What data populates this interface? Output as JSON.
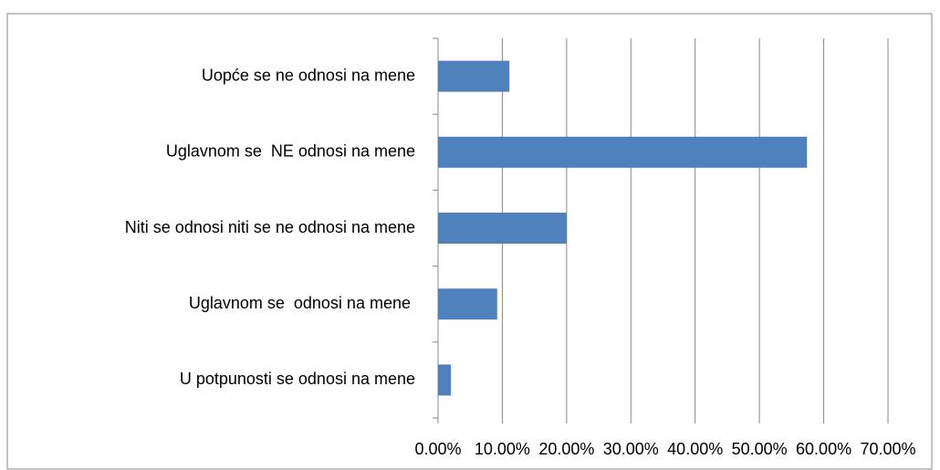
{
  "chart_data": {
    "type": "bar",
    "orientation": "horizontal",
    "categories": [
      "Uopće se ne odnosi na mene",
      "Uglavnom se  NE odnosi na mene",
      "Niti se odnosi niti se ne odnosi na mene",
      "Uglavnom se  odnosi na mene ",
      "U potpunosti se odnosi na mene"
    ],
    "values": [
      11.1,
      57.4,
      20.0,
      9.2,
      2.0
    ],
    "color": "#4f81bd",
    "xlim": [
      0,
      70
    ],
    "xticks": [
      {
        "value": 0,
        "label": "0.00%"
      },
      {
        "value": 10,
        "label": "10.00%"
      },
      {
        "value": 20,
        "label": "20.00%"
      },
      {
        "value": 30,
        "label": "30.00%"
      },
      {
        "value": 40,
        "label": "40.00%"
      },
      {
        "value": 50,
        "label": "50.00%"
      },
      {
        "value": 60,
        "label": "60.00%"
      },
      {
        "value": 70,
        "label": "70.00%"
      }
    ],
    "grid": true
  }
}
